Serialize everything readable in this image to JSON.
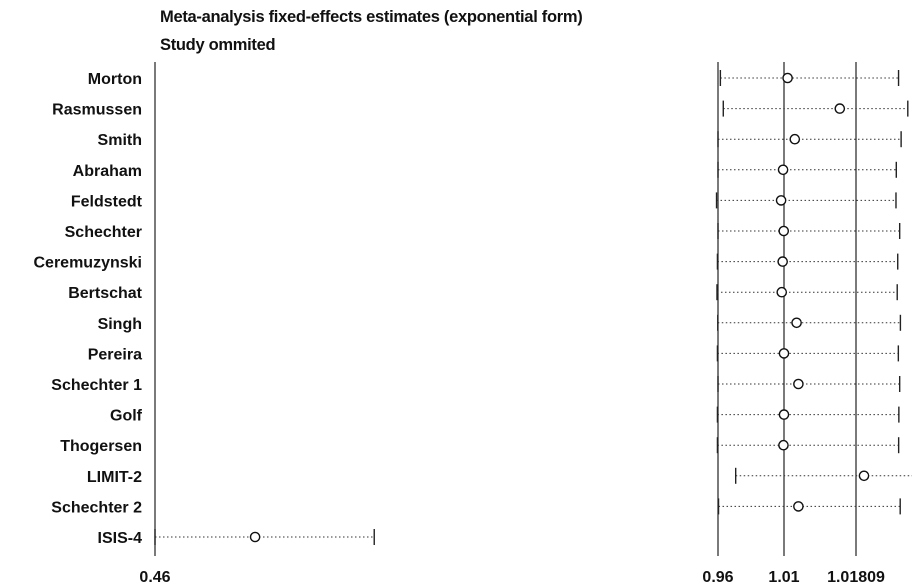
{
  "chart_data": {
    "type": "forest",
    "title": "Meta-analysis fixed-effects estimates (exponential form)",
    "subtitle": "Study ommited",
    "xlim": [
      0.46,
      1.018
    ],
    "xticks": [
      {
        "value": 0.46,
        "label": "0.46"
      },
      {
        "value": 0.96,
        "label": "0.96"
      },
      {
        "value": 1.01,
        "label": "1.01"
      },
      {
        "value": 1.018,
        "label": "1.01809"
      }
    ],
    "reference_lines": [
      0.96,
      1.01,
      1.018
    ],
    "studies": [
      {
        "name": "Morton",
        "estimate": 1.0104,
        "lower": 0.9618,
        "upper": 1.0594
      },
      {
        "name": "Rasmussen",
        "estimate": 1.0162,
        "lower": 0.964,
        "upper": 1.0684
      },
      {
        "name": "Smith",
        "estimate": 1.0112,
        "lower": 0.96,
        "upper": 1.0619
      },
      {
        "name": "Abraham",
        "estimate": 1.0093,
        "lower": 0.96,
        "upper": 1.0572
      },
      {
        "name": "Feldstedt",
        "estimate": 1.0078,
        "lower": 0.9587,
        "upper": 1.0569
      },
      {
        "name": "Schechter",
        "estimate": 1.0098,
        "lower": 0.96,
        "upper": 1.0605
      },
      {
        "name": "Ceremuzynski",
        "estimate": 1.009,
        "lower": 0.9595,
        "upper": 1.0586
      },
      {
        "name": "Bertschat",
        "estimate": 1.0083,
        "lower": 0.9591,
        "upper": 1.0581
      },
      {
        "name": "Singh",
        "estimate": 1.0114,
        "lower": 0.9598,
        "upper": 1.0612
      },
      {
        "name": "Pereira",
        "estimate": 1.01,
        "lower": 0.9595,
        "upper": 1.0592
      },
      {
        "name": "Schechter 1",
        "estimate": 1.0116,
        "lower": 0.96,
        "upper": 1.0605
      },
      {
        "name": "Golf",
        "estimate": 1.01,
        "lower": 0.9595,
        "upper": 1.0597
      },
      {
        "name": "Thogersen",
        "estimate": 1.0096,
        "lower": 0.9595,
        "upper": 1.0595
      },
      {
        "name": "LIMIT-2",
        "estimate": 1.0258,
        "lower": 0.9734,
        "upper": 1.0803
      },
      {
        "name": "Schechter 2",
        "estimate": 1.0116,
        "lower": 0.9604,
        "upper": 1.061
      },
      {
        "name": "ISIS-4",
        "estimate": 0.5489,
        "lower": 0.46,
        "upper": 0.6547
      }
    ]
  }
}
